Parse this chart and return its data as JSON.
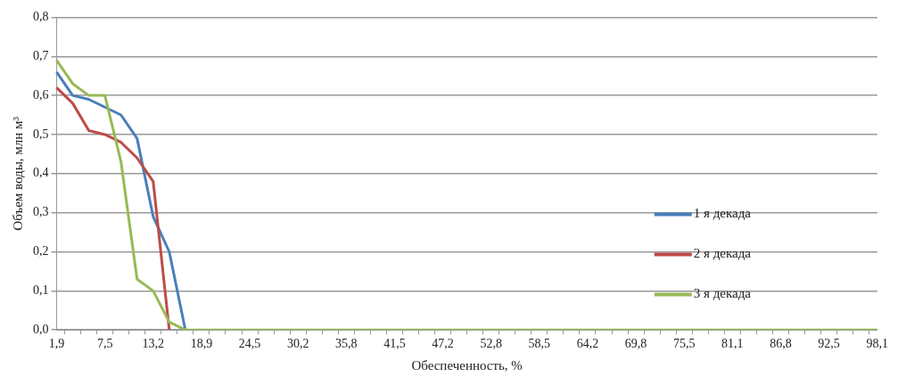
{
  "chart_data": {
    "type": "line",
    "xlabel": "Обеспеченность, %",
    "ylabel": "Объем воды, млн м³",
    "categories": [
      "1,9",
      null,
      null,
      "7,5",
      null,
      null,
      "13,2",
      null,
      null,
      "18,9",
      null,
      null,
      "24,5",
      null,
      null,
      "30,2",
      null,
      null,
      "35,8",
      null,
      null,
      "41,5",
      null,
      null,
      "47,2",
      null,
      null,
      "52,8",
      null,
      null,
      "58,5",
      null,
      null,
      "64,2",
      null,
      null,
      "69,8",
      null,
      null,
      "75,5",
      null,
      null,
      "81,1",
      null,
      null,
      "86,8",
      null,
      null,
      "92,5",
      null,
      null,
      "98,1"
    ],
    "series": [
      {
        "name": "1 я декада",
        "color": "#4a7ebb",
        "values": [
          0.66,
          0.6,
          0.59,
          0.57,
          0.55,
          0.49,
          0.29,
          0.2,
          0,
          null,
          null,
          null,
          null,
          null,
          null,
          null,
          null,
          null,
          null,
          null,
          null,
          null,
          null,
          null,
          null,
          null,
          null,
          null,
          null,
          null,
          null,
          null,
          null,
          null,
          null,
          null,
          null,
          null,
          null,
          null,
          null,
          null,
          null,
          null,
          null,
          null,
          null,
          null,
          null,
          null,
          null,
          null
        ]
      },
      {
        "name": "2 я декада",
        "color": "#be4b48",
        "values": [
          0.62,
          0.58,
          0.51,
          0.5,
          0.48,
          0.44,
          0.38,
          0,
          null,
          null,
          null,
          null,
          null,
          null,
          null,
          null,
          null,
          null,
          null,
          null,
          null,
          null,
          null,
          null,
          null,
          null,
          null,
          null,
          null,
          null,
          null,
          null,
          null,
          null,
          null,
          null,
          null,
          null,
          null,
          null,
          null,
          null,
          null,
          null,
          null,
          null,
          null,
          null,
          null,
          null,
          null,
          null
        ]
      },
      {
        "name": "3 я декада",
        "color": "#98b954",
        "values": [
          0.69,
          0.63,
          0.6,
          0.6,
          0.43,
          0.13,
          0.1,
          0.02,
          0,
          0,
          0,
          0,
          0,
          0,
          0,
          0,
          0,
          0,
          0,
          0,
          0,
          0,
          0,
          0,
          0,
          0,
          0,
          0,
          0,
          0,
          0,
          0,
          0,
          0,
          0,
          0,
          0,
          0,
          0,
          0,
          0,
          0,
          0,
          0,
          0,
          0,
          0,
          0,
          0,
          0,
          0,
          0
        ]
      }
    ],
    "ylim": [
      0,
      0.8
    ],
    "yticks": [
      {
        "value": 0,
        "label": "0,0"
      },
      {
        "value": 0.1,
        "label": "0,1"
      },
      {
        "value": 0.2,
        "label": "0,2"
      },
      {
        "value": 0.3,
        "label": "0,3"
      },
      {
        "value": 0.4,
        "label": "0,4"
      },
      {
        "value": 0.5,
        "label": "0,5"
      },
      {
        "value": 0.6,
        "label": "0,6"
      },
      {
        "value": 0.7,
        "label": "0,7"
      },
      {
        "value": 0.8,
        "label": "0,8"
      }
    ],
    "grid": "y",
    "legend": "right",
    "marker": "none",
    "line_style": "solid"
  }
}
